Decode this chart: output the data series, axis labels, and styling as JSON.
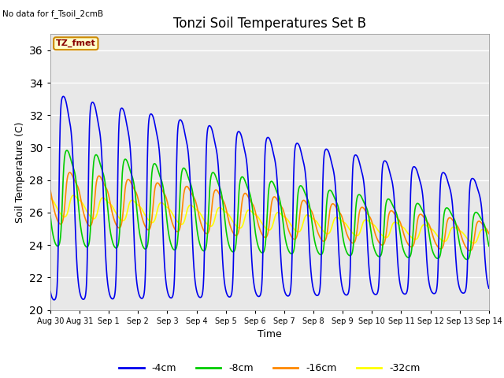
{
  "title": "Tonzi Soil Temperatures Set B",
  "xlabel": "Time",
  "ylabel": "Soil Temperature (C)",
  "ylim": [
    20,
    37
  ],
  "yticks": [
    20,
    22,
    24,
    26,
    28,
    30,
    32,
    34,
    36
  ],
  "no_data_text": "No data for f_Tsoil_2cmB",
  "annotation_text": "TZ_fmet",
  "annotation_bg": "#FFFFCC",
  "annotation_border": "#CC8800",
  "annotation_text_color": "#880000",
  "line_colors": {
    "-4cm": "#0000EE",
    "-8cm": "#00CC00",
    "-16cm": "#FF8800",
    "-32cm": "#FFFF00"
  },
  "line_widths": {
    "-4cm": 1.2,
    "-8cm": 1.2,
    "-16cm": 1.2,
    "-32cm": 1.2
  },
  "bg_color": "#E8E8E8",
  "grid_color": "#FFFFFF",
  "xtick_labels": [
    "Aug 30",
    "Aug 31",
    "Sep 1",
    "Sep 2",
    "Sep 3",
    "Sep 4",
    "Sep 5",
    "Sep 6",
    "Sep 7",
    "Sep 8",
    "Sep 9",
    "Sep 10",
    "Sep 11",
    "Sep 12",
    "Sep 13",
    "Sep 14"
  ],
  "num_points": 1440,
  "start_day": 0,
  "end_day": 15
}
